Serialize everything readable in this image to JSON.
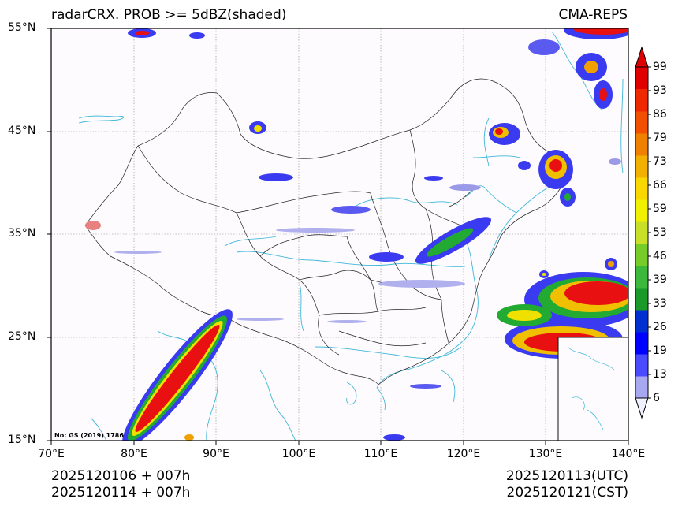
{
  "title_left": "radarCRX. PROB >= 5dBZ(shaded)",
  "title_right": "CMA-REPS",
  "lat_labels": [
    "55°N",
    "45°N",
    "35°N",
    "25°N",
    "15°N"
  ],
  "lon_labels": [
    "70°E",
    "80°E",
    "90°E",
    "100°E",
    "110°E",
    "120°E",
    "130°E",
    "140°E"
  ],
  "map_note": "No: GS (2019) 1786",
  "footer": {
    "init_line1": "2025120106  +  007h",
    "init_line2": "2025120114  +  007h",
    "valid_line1": "2025120113(UTC)",
    "valid_line2": "2025120121(CST)"
  },
  "colorbar": {
    "labels": [
      "99",
      "93",
      "86",
      "79",
      "73",
      "66",
      "59",
      "53",
      "46",
      "39",
      "33",
      "26",
      "19",
      "13",
      "6"
    ],
    "colors": [
      "#f0f0ff",
      "#a8a8f0",
      "#4a4aff",
      "#0000ff",
      "#0030d0",
      "#1a9a2a",
      "#3cb83c",
      "#78cc2a",
      "#c8e028",
      "#f0f000",
      "#f8d800",
      "#f4b000",
      "#f08000",
      "#f05000",
      "#f02800",
      "#e00000"
    ]
  }
}
